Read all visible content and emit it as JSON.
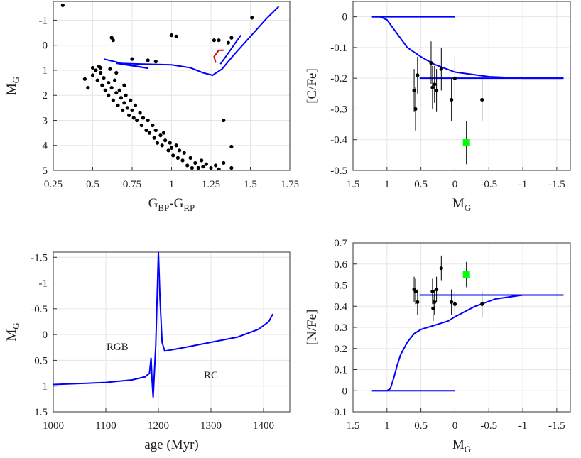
{
  "chart_data": [
    {
      "type": "scatter",
      "xlabel": [
        "G",
        "BP",
        "-G",
        "RP"
      ],
      "ylabel": [
        "M",
        "G"
      ],
      "xlim": [
        0.25,
        1.75
      ],
      "xticks": [
        0.25,
        0.5,
        0.75,
        1,
        1.25,
        1.5,
        1.75
      ],
      "ylim": [
        5,
        -1.75
      ],
      "yticks": [
        -1,
        0,
        1,
        2,
        3,
        4,
        5
      ],
      "grid": true,
      "series": [
        {
          "mode": "markers",
          "marker": "dot",
          "color": "#000000",
          "x": [
            0.5,
            0.5,
            0.52,
            0.53,
            0.55,
            0.56,
            0.57,
            0.58,
            0.6,
            0.6,
            0.62,
            0.63,
            0.64,
            0.65,
            0.66,
            0.67,
            0.68,
            0.69,
            0.7,
            0.71,
            0.72,
            0.73,
            0.74,
            0.75,
            0.76,
            0.77,
            0.78,
            0.8,
            0.81,
            0.82,
            0.84,
            0.85,
            0.86,
            0.88,
            0.89,
            0.9,
            0.91,
            0.93,
            0.94,
            0.95,
            0.96,
            0.98,
            0.99,
            1.0,
            1.01,
            1.03,
            1.04,
            1.05,
            1.07,
            1.08,
            1.1,
            1.12,
            1.13,
            1.15,
            1.17,
            1.19,
            1.2,
            1.22,
            1.25,
            1.28,
            1.3,
            1.33,
            0.45,
            0.47,
            0.54,
            0.61,
            0.65,
            0.7,
            0.31,
            0.55,
            0.62,
            0.63,
            1.0,
            1.03,
            1.27,
            1.3,
            1.36,
            1.38,
            1.51,
            1.33,
            1.38,
            1.38,
            0.75,
            0.85,
            0.9
          ],
          "values": [
            0.9,
            1.2,
            1.0,
            1.4,
            1.1,
            1.6,
            1.3,
            1.8,
            1.5,
            2.0,
            1.7,
            2.2,
            1.4,
            1.9,
            2.4,
            1.8,
            2.1,
            2.6,
            2.3,
            2.0,
            2.5,
            2.8,
            2.2,
            2.6,
            2.9,
            2.4,
            3.0,
            2.7,
            3.2,
            2.9,
            3.4,
            3.0,
            3.5,
            3.2,
            3.7,
            3.4,
            3.9,
            3.6,
            4.0,
            3.5,
            3.8,
            4.2,
            3.9,
            4.1,
            4.4,
            4.0,
            4.5,
            4.2,
            4.6,
            4.3,
            4.8,
            4.5,
            4.9,
            4.7,
            4.9,
            4.6,
            4.85,
            4.75,
            4.9,
            4.8,
            4.95,
            4.7,
            1.35,
            1.7,
            0.85,
            0.95,
            1.1,
            1.6,
            -1.6,
            0.9,
            -0.3,
            -0.2,
            -0.4,
            -0.35,
            -0.2,
            -0.2,
            -0.1,
            -0.3,
            -1.1,
            3.0,
            4.05,
            4.9,
            0.55,
            0.6,
            0.65
          ]
        },
        {
          "mode": "lines",
          "color": "#0000ff",
          "x": [
            0.57,
            0.7,
            0.85,
            0.75,
            0.65,
            0.8,
            1.0,
            1.12,
            1.2,
            1.26,
            1.32,
            1.4,
            1.5,
            1.6,
            1.68
          ],
          "values": [
            0.55,
            0.75,
            0.92,
            0.82,
            0.72,
            0.75,
            0.78,
            0.9,
            1.1,
            1.2,
            0.95,
            0.35,
            -0.35,
            -1.05,
            -1.55
          ]
        },
        {
          "mode": "lines",
          "color": "#0000ff",
          "x": [
            1.31,
            1.35,
            1.4,
            1.44
          ],
          "values": [
            0.75,
            0.4,
            -0.05,
            -0.4
          ]
        },
        {
          "mode": "lines",
          "color": "#e00000",
          "x": [
            1.28,
            1.27,
            1.3,
            1.33
          ],
          "values": [
            0.7,
            0.45,
            0.2,
            0.2
          ]
        }
      ]
    },
    {
      "type": "scatter",
      "xlabel": [
        "M",
        "G"
      ],
      "ylabel": [
        "[C/Fe]"
      ],
      "xlim": [
        1.5,
        -1.7
      ],
      "xticks": [
        1.5,
        1,
        0.5,
        0,
        -0.5,
        -1,
        -1.5
      ],
      "ylim": [
        -0.5,
        0.05
      ],
      "yticks": [
        -0.5,
        -0.4,
        -0.3,
        -0.2,
        -0.1,
        0
      ],
      "grid": true,
      "series": [
        {
          "mode": "lines",
          "color": "#0000ff",
          "x": [
            1.22,
            0
          ],
          "values": [
            0,
            0
          ]
        },
        {
          "mode": "lines",
          "color": "#0000ff",
          "x": [
            1.22,
            1.1,
            1.0,
            0.9,
            0.8,
            0.7,
            0.5,
            0.3,
            0,
            -0.5,
            -1,
            -1.6
          ],
          "values": [
            0,
            0,
            -0.01,
            -0.04,
            -0.07,
            -0.1,
            -0.13,
            -0.155,
            -0.18,
            -0.195,
            -0.2,
            -0.2
          ]
        },
        {
          "mode": "lines",
          "color": "#0000ff",
          "x": [
            0.52,
            -1.6
          ],
          "values": [
            -0.2,
            -0.2
          ]
        },
        {
          "mode": "markers",
          "marker": "dot",
          "color": "#000000",
          "x": [
            0.6,
            0.58,
            0.55,
            0.35,
            0.33,
            0.3,
            0.27,
            0.2,
            0.05,
            0,
            -0.4
          ],
          "values": [
            -0.24,
            -0.3,
            -0.19,
            -0.15,
            -0.23,
            -0.22,
            -0.24,
            -0.17,
            -0.27,
            -0.2,
            -0.27
          ],
          "errors": [
            0.07,
            0.07,
            0.06,
            0.07,
            0.07,
            0.06,
            0.07,
            0.07,
            0.07,
            0.07,
            0.07
          ]
        },
        {
          "mode": "markers",
          "marker": "square",
          "color": "#00ff00",
          "x": [
            -0.17
          ],
          "values": [
            -0.41
          ],
          "errors": [
            0.07
          ]
        }
      ]
    },
    {
      "type": "scatter",
      "xlabel": [
        "age (Myr)"
      ],
      "ylabel": [
        "M",
        "G"
      ],
      "xlim": [
        1000,
        1450
      ],
      "xticks": [
        1000,
        1100,
        1200,
        1300,
        1400
      ],
      "ylim": [
        1.5,
        -1.6
      ],
      "yticks": [
        1.5,
        1,
        0.5,
        0,
        -0.5,
        -1,
        -1.5
      ],
      "grid": true,
      "annotations": [
        "RGB",
        "RC"
      ],
      "series": [
        {
          "mode": "lines",
          "color": "#0000ff",
          "x": [
            1000,
            1100,
            1150,
            1175,
            1183,
            1186,
            1188,
            1190,
            1195,
            1200,
            1203,
            1207,
            1212,
            1250,
            1300,
            1350,
            1390,
            1410,
            1415,
            1418
          ],
          "values": [
            0.97,
            0.93,
            0.88,
            0.82,
            0.75,
            0.45,
            0.9,
            1.22,
            0.2,
            -1.6,
            -0.7,
            0.15,
            0.32,
            0.25,
            0.15,
            0.05,
            -0.1,
            -0.25,
            -0.35,
            -0.4
          ]
        }
      ]
    },
    {
      "type": "scatter",
      "xlabel": [
        "M",
        "G"
      ],
      "ylabel": [
        "[N/Fe]"
      ],
      "xlim": [
        1.5,
        -1.7
      ],
      "xticks": [
        1.5,
        1,
        0.5,
        0,
        -0.5,
        -1,
        -1.5
      ],
      "ylim": [
        -0.1,
        0.7
      ],
      "yticks": [
        -0.1,
        0,
        0.1,
        0.2,
        0.3,
        0.4,
        0.5,
        0.6,
        0.7
      ],
      "grid": true,
      "series": [
        {
          "mode": "lines",
          "color": "#0000ff",
          "x": [
            1.22,
            0
          ],
          "values": [
            0,
            0
          ]
        },
        {
          "mode": "lines",
          "color": "#0000ff",
          "x": [
            1.22,
            1.0,
            0.95,
            0.9,
            0.85,
            0.8,
            0.7,
            0.6,
            0.5,
            0.3,
            0.1,
            0,
            -0.3,
            -0.6,
            -1,
            -1.6
          ],
          "values": [
            0,
            0,
            0.01,
            0.06,
            0.12,
            0.17,
            0.23,
            0.27,
            0.29,
            0.31,
            0.33,
            0.35,
            0.4,
            0.435,
            0.453,
            0.453
          ]
        },
        {
          "mode": "lines",
          "color": "#0000ff",
          "x": [
            0.52,
            -1.6
          ],
          "values": [
            0.453,
            0.453
          ]
        },
        {
          "mode": "markers",
          "marker": "dot",
          "color": "#000000",
          "x": [
            0.6,
            0.58,
            0.55,
            0.33,
            0.32,
            0.3,
            0.27,
            0.2,
            0.05,
            0,
            -0.4
          ],
          "values": [
            0.48,
            0.47,
            0.42,
            0.47,
            0.39,
            0.42,
            0.48,
            0.58,
            0.42,
            0.41,
            0.41
          ],
          "errors": [
            0.06,
            0.06,
            0.06,
            0.06,
            0.06,
            0.06,
            0.06,
            0.06,
            0.06,
            0.06,
            0.06
          ]
        },
        {
          "mode": "markers",
          "marker": "square",
          "color": "#00ff00",
          "x": [
            -0.17
          ],
          "values": [
            0.55
          ],
          "errors": [
            0.06
          ]
        }
      ]
    }
  ]
}
